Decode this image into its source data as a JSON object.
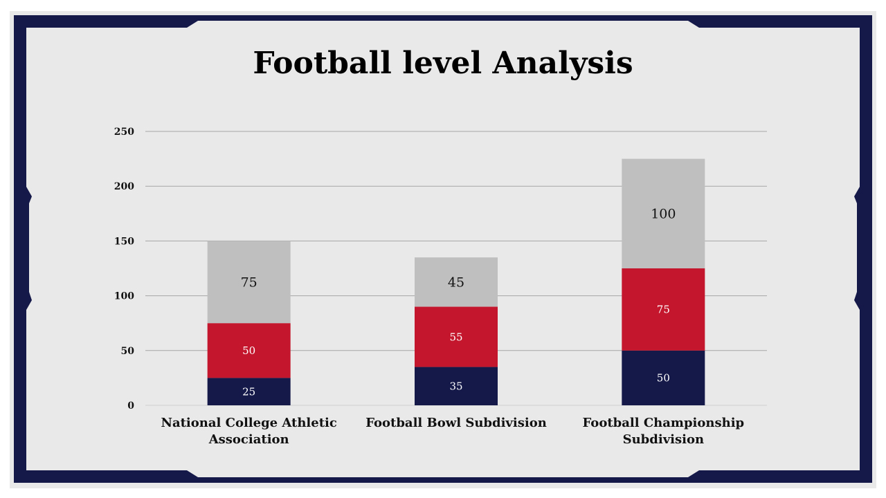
{
  "slide": {
    "title": "Football level Analysis",
    "colors": {
      "frame": "#15194a",
      "background": "#ffffff"
    }
  },
  "chart_data": {
    "type": "bar",
    "stacked": true,
    "title": "",
    "xlabel": "",
    "ylabel": "",
    "ylim": [
      0,
      250
    ],
    "yticks": [
      0,
      50,
      100,
      150,
      200,
      250
    ],
    "grid": true,
    "categories": [
      [
        "National College Athletic",
        "Association"
      ],
      [
        "Football Bowl Subdivision"
      ],
      [
        "Football Championship",
        "Subdivision"
      ]
    ],
    "series": [
      {
        "values": [
          25,
          35,
          50
        ],
        "color": "#15194a",
        "label_color": "#ffffff",
        "label_size": 15
      },
      {
        "values": [
          50,
          55,
          75
        ],
        "color": "#c4162c",
        "label_color": "#ffffff",
        "label_size": 15
      },
      {
        "values": [
          75,
          45,
          100
        ],
        "color": "#bfbfbf",
        "label_color": "#111111",
        "label_size": 19
      }
    ]
  }
}
